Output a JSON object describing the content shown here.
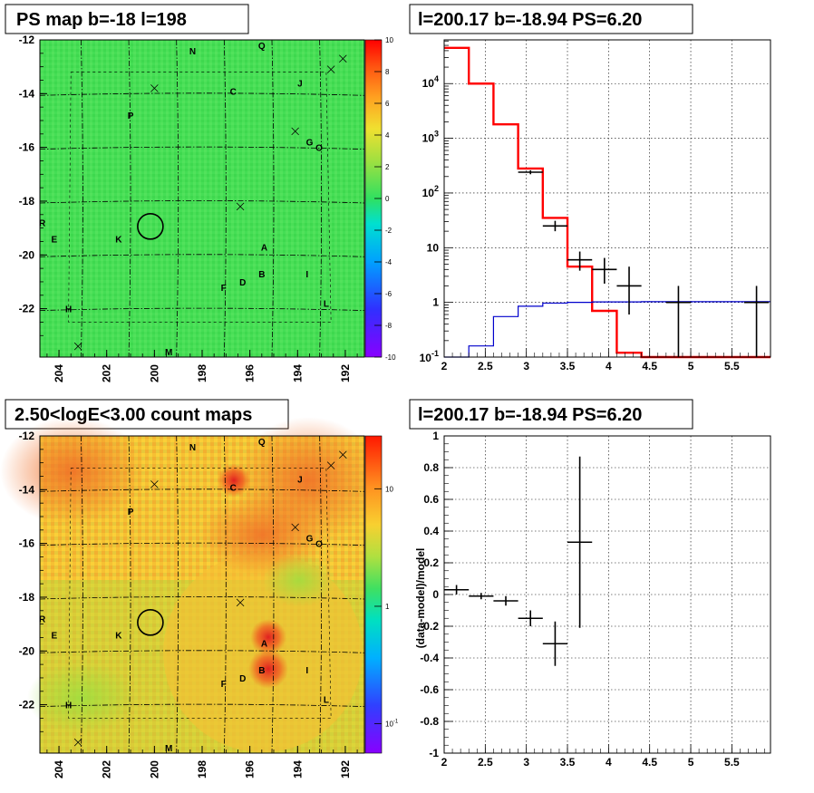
{
  "chart_data": [
    {
      "type": "heatmap",
      "title": "PS map b=-18 l=198",
      "xlabel": "",
      "ylabel": "",
      "xlim": [
        204.8,
        191.2
      ],
      "ylim": [
        -23.8,
        -12.0
      ],
      "x_ticks": [
        "204",
        "202",
        "200",
        "198",
        "196",
        "194",
        "192"
      ],
      "y_ticks": [
        "-12",
        "-14",
        "-16",
        "-18",
        "-20",
        "-22"
      ],
      "colorbar_ticks": [
        "10",
        "8",
        "6",
        "4",
        "2",
        "0",
        "-2",
        "-4",
        "-6",
        "-8",
        "-10"
      ],
      "colorbar_range": [
        -10,
        10
      ],
      "colors": {
        "background": "#3ddc52",
        "mid": "#5de25a",
        "hot": "#ff2200"
      },
      "sources": [
        {
          "name": "N",
          "l": 198.4,
          "b": -12.4
        },
        {
          "name": "Q",
          "l": 195.5,
          "b": -12.2
        },
        {
          "name": "J",
          "l": 193.9,
          "b": -13.6
        },
        {
          "name": "C",
          "l": 196.7,
          "b": -13.9
        },
        {
          "name": "P",
          "l": 201.0,
          "b": -14.8
        },
        {
          "name": "G",
          "l": 193.5,
          "b": -15.8
        },
        {
          "name": "O",
          "l": 193.1,
          "b": -16.0
        },
        {
          "name": "R",
          "l": 204.7,
          "b": -18.8
        },
        {
          "name": "E",
          "l": 204.2,
          "b": -19.4
        },
        {
          "name": "K",
          "l": 201.5,
          "b": -19.4
        },
        {
          "name": "A",
          "l": 195.4,
          "b": -19.7
        },
        {
          "name": "B",
          "l": 195.5,
          "b": -20.7
        },
        {
          "name": "I",
          "l": 193.6,
          "b": -20.7
        },
        {
          "name": "F",
          "l": 197.1,
          "b": -21.2
        },
        {
          "name": "D",
          "l": 196.3,
          "b": -21.0
        },
        {
          "name": "L",
          "l": 192.8,
          "b": -21.8
        },
        {
          "name": "H",
          "l": 203.6,
          "b": -22.0
        },
        {
          "name": "M",
          "l": 199.4,
          "b": -23.6
        }
      ]
    },
    {
      "type": "line",
      "title": "l=200.17 b=-18.94 PS=6.20",
      "xlabel": "",
      "ylabel": "",
      "xlim": [
        2.0,
        5.97
      ],
      "ylim": [
        0.1,
        63000
      ],
      "log_y": true,
      "x_ticks": [
        "2",
        "2.5",
        "3",
        "3.5",
        "4",
        "4.5",
        "5",
        "5.5"
      ],
      "y_ticks": [
        "10^1 = 10^-1",
        "1",
        "10",
        "10^2",
        "10^3",
        "10^4"
      ],
      "grid": true,
      "series": [
        {
          "color": "#ff0000",
          "edges": [
            2.0,
            2.3,
            2.6,
            2.9,
            3.2,
            3.5,
            3.8,
            4.1,
            4.4,
            4.7,
            5.0,
            5.3,
            5.6,
            5.97
          ],
          "values": [
            45000,
            10000,
            1800,
            280,
            35,
            4.5,
            0.7,
            0.12,
            0.1,
            0.1,
            0.1,
            0.1,
            0.1
          ]
        },
        {
          "color": "#0000cc",
          "edges": [
            2.0,
            2.3,
            2.6,
            2.9,
            3.2,
            3.5,
            3.8,
            4.1,
            4.4,
            4.7,
            5.0,
            5.3,
            5.6,
            5.97
          ],
          "values": [
            0.1,
            0.16,
            0.55,
            0.85,
            0.97,
            1.0,
            1.02,
            1.02,
            1.03,
            1.03,
            1.03,
            1.03,
            1.03
          ]
        },
        {
          "color": "#000000",
          "kind": "points",
          "points": [
            {
              "x": 3.05,
              "y": 240,
              "xerr": 0.15,
              "ylo": 220,
              "yhi": 260
            },
            {
              "x": 3.35,
              "y": 25,
              "xerr": 0.15,
              "ylo": 20,
              "yhi": 31
            },
            {
              "x": 3.65,
              "y": 6,
              "xerr": 0.15,
              "ylo": 3.8,
              "yhi": 8.5
            },
            {
              "x": 3.95,
              "y": 4,
              "xerr": 0.15,
              "ylo": 2.2,
              "yhi": 6.5
            },
            {
              "x": 4.25,
              "y": 2,
              "xerr": 0.15,
              "ylo": 0.6,
              "yhi": 4.5
            },
            {
              "x": 4.85,
              "y": 1,
              "xerr": 0.15,
              "ylo": 0.1,
              "yhi": 2.0
            },
            {
              "x": 5.8,
              "y": 1,
              "xerr": 0.15,
              "ylo": 0.1,
              "yhi": 2.0
            }
          ]
        }
      ]
    },
    {
      "type": "heatmap",
      "title": "2.50<logE<3.00 count maps",
      "xlabel": "",
      "ylabel": "",
      "xlim": [
        204.8,
        191.2
      ],
      "ylim": [
        -23.8,
        -12.0
      ],
      "log_color": true,
      "x_ticks": [
        "204",
        "202",
        "200",
        "198",
        "196",
        "194",
        "192"
      ],
      "y_ticks": [
        "-12",
        "-14",
        "-16",
        "-18",
        "-20",
        "-22"
      ],
      "colorbar_ticks": [
        "10",
        "1",
        "10^-1"
      ],
      "colors": {
        "background": "#f8c830",
        "low": "#a8e23c",
        "hot": "#e03020"
      }
    },
    {
      "type": "scatter",
      "title": "l=200.17 b=-18.94 PS=6.20",
      "xlabel": "",
      "ylabel": "(data-model)/model",
      "xlim": [
        2.0,
        5.97
      ],
      "ylim": [
        -1,
        1
      ],
      "x_ticks": [
        "2",
        "2.5",
        "3",
        "3.5",
        "4",
        "4.5",
        "5",
        "5.5"
      ],
      "y_ticks": [
        "1",
        "0.8",
        "0.6",
        "0.4",
        "0.2",
        "0",
        "-0.2",
        "-0.4",
        "-0.6",
        "-0.8",
        "-1"
      ],
      "grid": true,
      "points": [
        {
          "x": 2.15,
          "y": 0.03,
          "xerr": 0.15,
          "ylo": 0.0,
          "yhi": 0.06
        },
        {
          "x": 2.45,
          "y": -0.01,
          "xerr": 0.15,
          "ylo": -0.03,
          "yhi": 0.01
        },
        {
          "x": 2.75,
          "y": -0.04,
          "xerr": 0.15,
          "ylo": -0.07,
          "yhi": -0.01
        },
        {
          "x": 3.05,
          "y": -0.15,
          "xerr": 0.15,
          "ylo": -0.2,
          "yhi": -0.1
        },
        {
          "x": 3.35,
          "y": -0.31,
          "xerr": 0.15,
          "ylo": -0.45,
          "yhi": -0.17
        },
        {
          "x": 3.65,
          "y": 0.33,
          "xerr": 0.15,
          "ylo": -0.21,
          "yhi": 0.87
        }
      ]
    }
  ]
}
